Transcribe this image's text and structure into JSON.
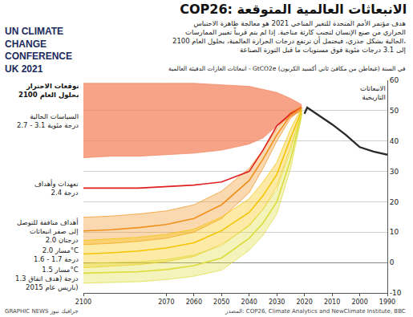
{
  "chart_data": {
    "type": "line",
    "title": "COP26: الانبعاثات العالمية المتوقعة",
    "subtitle": [
      "هدف مؤتمر الأمم المتحدة للتغير المناخي 2021 هو معالجة ظاهرة الاحتباس",
      "الحراري من صنع الإنسان لتجنب كارثة مناخية. إذا لم يتم قريباً تغيير الممارسات",
      "الحالية بشكل جذري، فيحتمل أن ترتفع درجات الحرارة العالمية، بحلول العام 2100،",
      "إلى 3.1 درجات مئوية فوق مستويات ما قبل الثورة الصناعة"
    ],
    "logo": [
      "UN CLIMATE",
      "CHANGE",
      "CONFERENCE",
      "UK 2021"
    ],
    "ylabel": "انبعاثات الغازات الدفيئة العالمية - GtCO2e في السنة (غيغاطن من مكافئ ثاني أكسيد الكربون)",
    "labels_title": [
      "توقعات الاحترار",
      "بحلول العام 2100"
    ],
    "source": "المصدر: COP26, Climate Analytics and NewClimate Institute, BBC",
    "credit": "GRAPHIC NEWS جرافيك نيوز",
    "xlim": [
      2100,
      1990
    ],
    "xticks": [
      2100,
      2070,
      2060,
      2050,
      2040,
      2030,
      2020,
      2010,
      2000,
      1990
    ],
    "ylim": [
      -10,
      60
    ],
    "yticks": [
      -10,
      0,
      10,
      20,
      30,
      40,
      50,
      60
    ],
    "grid": true,
    "x": [
      2021,
      2025,
      2030,
      2035,
      2040,
      2050,
      2060,
      2070,
      2080,
      2090,
      2100
    ],
    "series": [
      {
        "label": [
          "الانبعاثات",
          "التاريخية"
        ],
        "type": "line",
        "color": "#2b2b2b",
        "x": [
          1990,
          1995,
          2000,
          2005,
          2010,
          2015,
          2019,
          2020
        ],
        "values": [
          35.5,
          36.5,
          38,
          42,
          45.5,
          48.5,
          51,
          49
        ]
      },
      {
        "label": [
          "السياسات الحالية",
          "2.7 - 3.1 درجة مئوية"
        ],
        "type": "band",
        "color": "#f4845f",
        "upper": [
          52,
          54,
          56,
          57,
          58,
          58.5,
          59,
          59,
          59,
          59,
          59
        ],
        "lower": [
          50,
          48,
          45,
          41,
          39,
          37,
          36,
          35.5,
          35,
          35,
          34.5
        ]
      },
      {
        "label": [
          "تعهدات وأهداف",
          "2.4 درجة"
        ],
        "type": "line",
        "color": "#e02020",
        "values": [
          51,
          49,
          45,
          37,
          30,
          26.5,
          25.5,
          25,
          24.5,
          24.5,
          24.5
        ]
      },
      {
        "label": [
          "أهداف منافقة للتوصل",
          "إلى صفر انبعاثات",
          "2.0 درجتان"
        ],
        "type": "band",
        "color": "#f0901c",
        "values": [
          51,
          48.5,
          42,
          34,
          27,
          19,
          14.5,
          12.5,
          11.5,
          10.8,
          10.4
        ],
        "upper": [
          51.5,
          49.5,
          44,
          37,
          31,
          23.5,
          19,
          17,
          16,
          15.3,
          14.9
        ],
        "lower": [
          50.5,
          47.5,
          40,
          31,
          23,
          14.5,
          10,
          8,
          7,
          6.3,
          5.9
        ]
      },
      {
        "label": [
          "مسار 2.0°C",
          "1.6 - 1.7 درجة"
        ],
        "type": "band",
        "color": "#f5c400",
        "values": [
          50,
          41,
          29,
          22,
          16.5,
          10.5,
          6.5,
          4.8,
          3.8,
          3.2,
          2.8
        ],
        "upper": [
          51,
          44,
          33,
          26.5,
          21,
          15,
          11,
          9.3,
          8.3,
          7.7,
          7.3
        ],
        "lower": [
          49,
          38,
          25,
          17.5,
          12,
          6,
          2,
          0.3,
          -0.7,
          -1.3,
          -1.7
        ]
      },
      {
        "label": [
          "مسار 1.5°C",
          "1.3 درجة (هدف اتفاق",
          "باريس عام 2015)"
        ],
        "type": "band",
        "color": "#dcdc3c",
        "values": [
          49,
          34,
          20,
          13,
          8,
          1.5,
          -1,
          -2.3,
          -3,
          -3.3,
          -3.5
        ],
        "upper": [
          50,
          37,
          24,
          17.5,
          12.5,
          5.5,
          2.5,
          1,
          0.3,
          0,
          -0.3
        ],
        "lower": [
          48,
          31,
          16,
          9,
          4,
          -2.5,
          -4.5,
          -5.6,
          -6.3,
          -6.6,
          -6.8
        ]
      }
    ]
  }
}
